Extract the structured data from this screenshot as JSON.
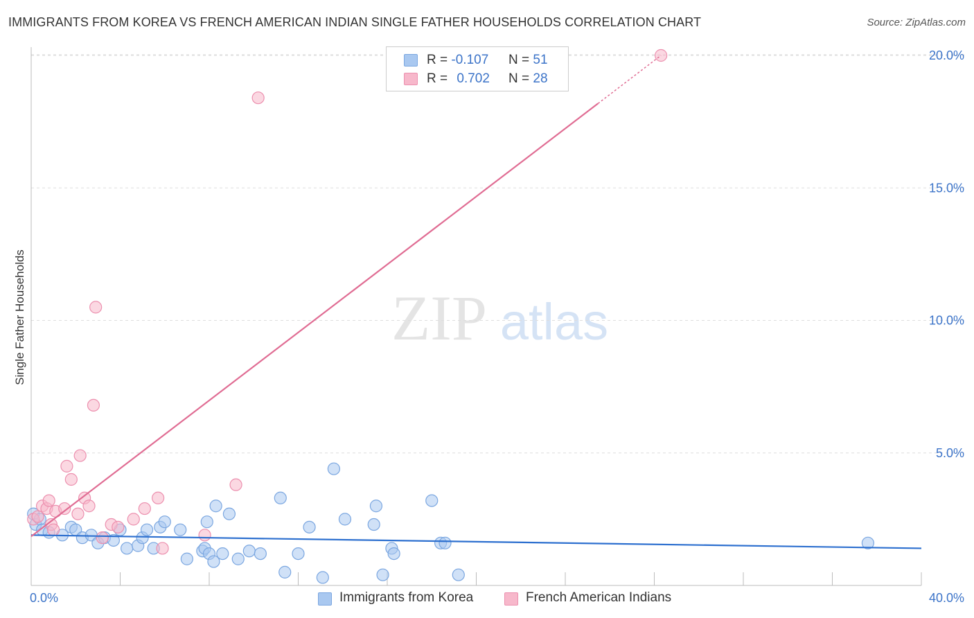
{
  "title": "IMMIGRANTS FROM KOREA VS FRENCH AMERICAN INDIAN SINGLE FATHER HOUSEHOLDS CORRELATION CHART",
  "source": "Source: ZipAtlas.com",
  "watermark": {
    "zip": "ZIP",
    "atlas": "atlas"
  },
  "legend": {
    "korea": {
      "r_label": "R =",
      "r_value": "-0.107",
      "n_label": "N =",
      "n_value": "51"
    },
    "french": {
      "r_label": "R =",
      "r_value": "0.702",
      "n_label": "N =",
      "n_value": "28"
    }
  },
  "colors": {
    "korea_fill": "#a9c8f0",
    "korea_stroke": "#7aa6e0",
    "korea_line": "#2c6fcf",
    "french_fill": "#f7b8cb",
    "french_stroke": "#ec8fae",
    "french_line": "#e06c93",
    "axis_text": "#3b73c8",
    "grid": "#dddddd"
  },
  "chart_data": {
    "type": "scatter",
    "title": "IMMIGRANTS FROM KOREA VS FRENCH AMERICAN INDIAN SINGLE FATHER HOUSEHOLDS CORRELATION CHART",
    "xlabel": "",
    "ylabel": "Single Father Households",
    "xlim": [
      0,
      40
    ],
    "ylim": [
      0,
      20.5
    ],
    "x_tick_labels": [
      "0.0%",
      "40.0%"
    ],
    "y_ticks": [
      5,
      10,
      15,
      20
    ],
    "y_tick_labels": [
      "5.0%",
      "10.0%",
      "15.0%",
      "20.0%"
    ],
    "legend_position": "top-center",
    "series": [
      {
        "name": "Immigrants from Korea",
        "color": "korea",
        "trend": {
          "x": [
            0,
            40
          ],
          "y": [
            1.9,
            1.4
          ]
        },
        "points": [
          {
            "x": 0.1,
            "y": 2.7
          },
          {
            "x": 0.2,
            "y": 2.3
          },
          {
            "x": 0.4,
            "y": 2.5
          },
          {
            "x": 0.5,
            "y": 2.1
          },
          {
            "x": 0.8,
            "y": 2.0
          },
          {
            "x": 1.4,
            "y": 1.9
          },
          {
            "x": 1.8,
            "y": 2.2
          },
          {
            "x": 2.0,
            "y": 2.1
          },
          {
            "x": 2.3,
            "y": 1.8
          },
          {
            "x": 2.7,
            "y": 1.9
          },
          {
            "x": 3.0,
            "y": 1.6
          },
          {
            "x": 3.3,
            "y": 1.8
          },
          {
            "x": 3.7,
            "y": 1.7
          },
          {
            "x": 4.0,
            "y": 2.1
          },
          {
            "x": 4.3,
            "y": 1.4
          },
          {
            "x": 4.8,
            "y": 1.5
          },
          {
            "x": 5.0,
            "y": 1.8
          },
          {
            "x": 5.2,
            "y": 2.1
          },
          {
            "x": 5.5,
            "y": 1.4
          },
          {
            "x": 5.8,
            "y": 2.2
          },
          {
            "x": 6.0,
            "y": 2.4
          },
          {
            "x": 6.7,
            "y": 2.1
          },
          {
            "x": 7.0,
            "y": 1.0
          },
          {
            "x": 7.7,
            "y": 1.3
          },
          {
            "x": 7.8,
            "y": 1.4
          },
          {
            "x": 7.9,
            "y": 2.4
          },
          {
            "x": 8.0,
            "y": 1.2
          },
          {
            "x": 8.2,
            "y": 0.9
          },
          {
            "x": 8.3,
            "y": 3.0
          },
          {
            "x": 8.6,
            "y": 1.2
          },
          {
            "x": 8.9,
            "y": 2.7
          },
          {
            "x": 9.3,
            "y": 1.0
          },
          {
            "x": 9.8,
            "y": 1.3
          },
          {
            "x": 10.3,
            "y": 1.2
          },
          {
            "x": 11.2,
            "y": 3.3
          },
          {
            "x": 11.4,
            "y": 0.5
          },
          {
            "x": 12.0,
            "y": 1.2
          },
          {
            "x": 12.5,
            "y": 2.2
          },
          {
            "x": 13.1,
            "y": 0.3
          },
          {
            "x": 13.6,
            "y": 4.4
          },
          {
            "x": 14.1,
            "y": 2.5
          },
          {
            "x": 15.4,
            "y": 2.3
          },
          {
            "x": 15.5,
            "y": 3.0
          },
          {
            "x": 15.8,
            "y": 0.4
          },
          {
            "x": 16.2,
            "y": 1.4
          },
          {
            "x": 16.3,
            "y": 1.2
          },
          {
            "x": 18.0,
            "y": 3.2
          },
          {
            "x": 18.4,
            "y": 1.6
          },
          {
            "x": 18.6,
            "y": 1.6
          },
          {
            "x": 19.2,
            "y": 0.4
          },
          {
            "x": 37.6,
            "y": 1.6
          }
        ]
      },
      {
        "name": "French American Indians",
        "color": "french",
        "trend": {
          "x": [
            0,
            28.3
          ],
          "y": [
            1.85,
            20.0
          ]
        },
        "points": [
          {
            "x": 0.1,
            "y": 2.5
          },
          {
            "x": 0.3,
            "y": 2.6
          },
          {
            "x": 0.5,
            "y": 3.0
          },
          {
            "x": 0.7,
            "y": 2.9
          },
          {
            "x": 0.8,
            "y": 3.2
          },
          {
            "x": 0.9,
            "y": 2.3
          },
          {
            "x": 1.0,
            "y": 2.1
          },
          {
            "x": 1.1,
            "y": 2.8
          },
          {
            "x": 1.5,
            "y": 2.9
          },
          {
            "x": 1.6,
            "y": 4.5
          },
          {
            "x": 1.8,
            "y": 4.0
          },
          {
            "x": 2.1,
            "y": 2.7
          },
          {
            "x": 2.2,
            "y": 4.9
          },
          {
            "x": 2.4,
            "y": 3.3
          },
          {
            "x": 2.6,
            "y": 3.0
          },
          {
            "x": 2.8,
            "y": 6.8
          },
          {
            "x": 2.9,
            "y": 10.5
          },
          {
            "x": 3.2,
            "y": 1.8
          },
          {
            "x": 3.6,
            "y": 2.3
          },
          {
            "x": 3.9,
            "y": 2.2
          },
          {
            "x": 4.6,
            "y": 2.5
          },
          {
            "x": 5.1,
            "y": 2.9
          },
          {
            "x": 5.7,
            "y": 3.3
          },
          {
            "x": 5.9,
            "y": 1.4
          },
          {
            "x": 7.8,
            "y": 1.9
          },
          {
            "x": 9.2,
            "y": 3.8
          },
          {
            "x": 10.2,
            "y": 18.4
          },
          {
            "x": 28.3,
            "y": 20.0
          }
        ]
      }
    ]
  },
  "bottom_legend": {
    "korea_label": "Immigrants from Korea",
    "french_label": "French American Indians"
  }
}
